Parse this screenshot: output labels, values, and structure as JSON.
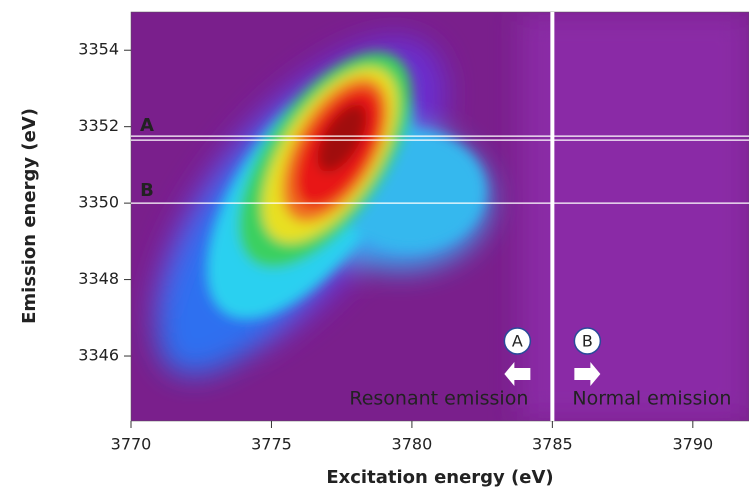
{
  "chart_data": {
    "type": "heatmap",
    "x_label": "Excitation energy (eV)",
    "y_label": "Emission energy (eV)",
    "xlim": [
      3770,
      3792
    ],
    "xticks": [
      3770,
      3775,
      3780,
      3785,
      3790
    ],
    "ylim": [
      3344.3,
      3355
    ],
    "yticks": [
      3346,
      3348,
      3350,
      3352,
      3354
    ],
    "hlines": [
      {
        "label": "A",
        "value": 3351.7
      },
      {
        "label": "B",
        "value": 3350
      }
    ],
    "vline": 3785,
    "regions": [
      {
        "marker": "A",
        "label": "Resonant emission"
      },
      {
        "marker": "B",
        "label": "Normal emission"
      }
    ]
  }
}
